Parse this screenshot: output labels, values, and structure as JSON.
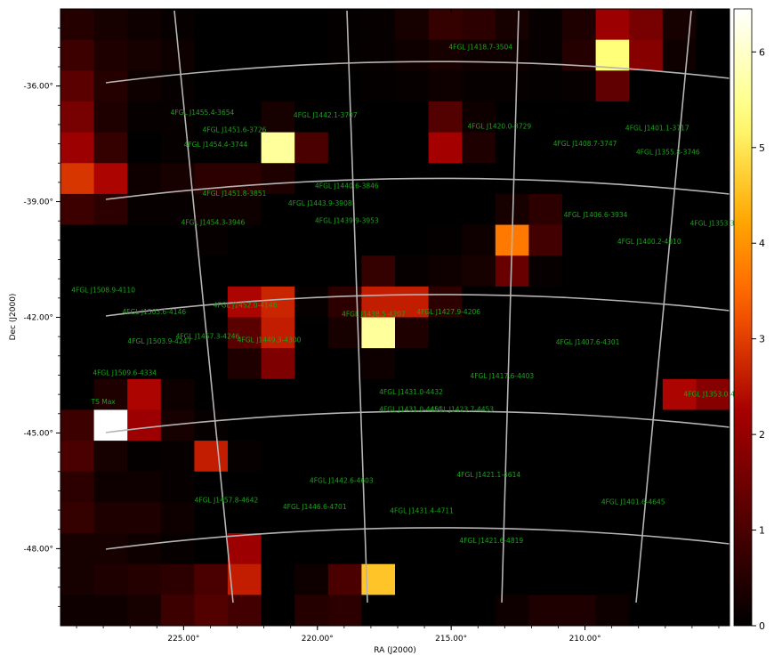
{
  "chart_data": {
    "type": "heatmap",
    "xlabel": "RA (J2000)",
    "ylabel": "Dec (J2000)",
    "x_range": [
      229.6,
      204.6
    ],
    "y_range": [
      -50.0,
      -34.0
    ],
    "x_ticks": [
      225.0,
      220.0,
      215.0,
      210.0
    ],
    "x_tick_labels": [
      "225.00°",
      "220.00°",
      "215.00°",
      "210.00°"
    ],
    "y_ticks": [
      -36.0,
      -39.0,
      -42.0,
      -45.0,
      -48.0
    ],
    "y_tick_labels": [
      "-36.00°",
      "-39.00°",
      "-42.00°",
      "-45.00°",
      "-48.00°"
    ],
    "colorbar": {
      "range": [
        0,
        6.45
      ],
      "ticks": [
        0,
        1,
        2,
        3,
        4,
        5,
        6
      ],
      "tick_labels": [
        "0",
        "1",
        "2",
        "3",
        "4",
        "5",
        "6"
      ],
      "colormap": "gist_heat"
    },
    "grid": {
      "rows": 20,
      "cols": 20,
      "values": [
        [
          0.5,
          0.3,
          0.2,
          0.1,
          0,
          0,
          0,
          0,
          0.05,
          0.1,
          0.3,
          0.7,
          0.6,
          0.3,
          0.1,
          0.4,
          2.1,
          1.6,
          0.3,
          0
        ],
        [
          0.8,
          0.4,
          0.3,
          0.2,
          0,
          0,
          0,
          0,
          0.05,
          0.1,
          0.2,
          0.3,
          0.2,
          0.2,
          0.1,
          0.5,
          5.3,
          1.8,
          0.2,
          0
        ],
        [
          1.2,
          0.5,
          0.2,
          0.1,
          0,
          0,
          0,
          0,
          0,
          0.05,
          0.1,
          0.2,
          0.1,
          0.1,
          0.05,
          0.1,
          1.3,
          0,
          0,
          0
        ],
        [
          1.6,
          0.4,
          0.1,
          0.1,
          0,
          0,
          0.3,
          0,
          0,
          0,
          0,
          1.1,
          0.2,
          0,
          0,
          0,
          0,
          0,
          0,
          0
        ],
        [
          2.1,
          0.7,
          0,
          0.1,
          0,
          0,
          5.6,
          1.0,
          0,
          0,
          0,
          2.2,
          0.4,
          0,
          0,
          0,
          0,
          0,
          0,
          0
        ],
        [
          2.9,
          2.3,
          0.2,
          0.3,
          0.6,
          0.6,
          0.4,
          0,
          0,
          0,
          0,
          0,
          0,
          0,
          0,
          0,
          0,
          0,
          0,
          0
        ],
        [
          0.8,
          0.6,
          0.1,
          0.1,
          0.2,
          0.2,
          0,
          0,
          0,
          0,
          0,
          0,
          0,
          0.3,
          0.6,
          0,
          0,
          0,
          0,
          0
        ],
        [
          0,
          0,
          0,
          0,
          0.1,
          0,
          0,
          0,
          0,
          0,
          0,
          0.05,
          0.2,
          3.7,
          0.9,
          0,
          0,
          0,
          0,
          0
        ],
        [
          0,
          0,
          0,
          0,
          0,
          0,
          0,
          0,
          0,
          0.7,
          0.1,
          0.2,
          0.3,
          1.4,
          0.1,
          0,
          0,
          0,
          0,
          0
        ],
        [
          0,
          0,
          0,
          0,
          0,
          2.3,
          2.7,
          0.1,
          0.6,
          2.6,
          2.6,
          0.6,
          0,
          0,
          0,
          0,
          0,
          0,
          0,
          0
        ],
        [
          0,
          0,
          0,
          0,
          0,
          1.2,
          2.6,
          0,
          0.3,
          5.6,
          0.4,
          0,
          0,
          0,
          0,
          0,
          0,
          0,
          0,
          0
        ],
        [
          0,
          0,
          0,
          0,
          0,
          0.4,
          1.7,
          0,
          0,
          0.2,
          0,
          0,
          0,
          0,
          0,
          0,
          0,
          0,
          0,
          0
        ],
        [
          0,
          0.4,
          2.3,
          0.2,
          0,
          0,
          0,
          0,
          0,
          0,
          0,
          0,
          0,
          0,
          0,
          0,
          0,
          0,
          2.3,
          1.8
        ],
        [
          0.8,
          6.45,
          2.1,
          0.3,
          0.1,
          0,
          0,
          0,
          0,
          0,
          0,
          0,
          0,
          0,
          0,
          0,
          0,
          0,
          0,
          0
        ],
        [
          1.0,
          0.3,
          0.05,
          0.1,
          2.6,
          0.1,
          0,
          0,
          0,
          0,
          0,
          0,
          0,
          0,
          0,
          0,
          0,
          0,
          0,
          0
        ],
        [
          0.6,
          0.2,
          0.2,
          0.1,
          0,
          0,
          0,
          0,
          0,
          0,
          0,
          0,
          0,
          0,
          0,
          0,
          0,
          0,
          0,
          0
        ],
        [
          0.7,
          0.4,
          0.4,
          0.2,
          0,
          0,
          0,
          0,
          0,
          0,
          0,
          0,
          0,
          0,
          0,
          0,
          0,
          0,
          0,
          0
        ],
        [
          0.3,
          0.3,
          0.2,
          0.1,
          0,
          2.1,
          0,
          0,
          0,
          0,
          0,
          0,
          0,
          0,
          0,
          0,
          0,
          0,
          0,
          0
        ],
        [
          0.3,
          0.4,
          0.5,
          0.6,
          1.0,
          2.6,
          0,
          0.2,
          1.0,
          4.6,
          0,
          0,
          0,
          0,
          0,
          0,
          0,
          0,
          0,
          0
        ],
        [
          0.2,
          0.2,
          0.3,
          0.8,
          1.1,
          0.9,
          0,
          0.5,
          0.6,
          0,
          0,
          0,
          0,
          0.2,
          0.4,
          0.4,
          0.2,
          0,
          0,
          0
        ]
      ]
    },
    "sources": [
      {
        "name": "4FGL J1418.7-3504",
        "ra": 213.9,
        "dec": -35.05
      },
      {
        "name": "4FGL J1455.4-3654",
        "ra": 224.3,
        "dec": -36.75
      },
      {
        "name": "4FGL J1442.1-3707",
        "ra": 219.7,
        "dec": -36.82
      },
      {
        "name": "4FGL J1451.6-3726",
        "ra": 223.1,
        "dec": -37.2
      },
      {
        "name": "4FGL J1420.0-3729",
        "ra": 213.2,
        "dec": -37.1
      },
      {
        "name": "4FGL J1401.1-3717",
        "ra": 207.3,
        "dec": -37.15
      },
      {
        "name": "4FGL J1454.4-3744",
        "ra": 223.8,
        "dec": -37.58
      },
      {
        "name": "4FGL J1408.7-3747",
        "ra": 210.0,
        "dec": -37.55
      },
      {
        "name": "4FGL J1355.8-3746",
        "ra": 206.9,
        "dec": -37.78
      },
      {
        "name": "4FGL J1440.6-3846",
        "ra": 218.9,
        "dec": -38.65
      },
      {
        "name": "4FGL J1451.8-3851",
        "ra": 223.1,
        "dec": -38.85
      },
      {
        "name": "4FGL J1443.9-3908",
        "ra": 219.9,
        "dec": -39.1
      },
      {
        "name": "4FGL J1406.6-3934",
        "ra": 209.6,
        "dec": -39.4
      },
      {
        "name": "4FGL J1454.3-3946",
        "ra": 223.9,
        "dec": -39.6
      },
      {
        "name": "4FGL J1439.9-3953",
        "ra": 218.9,
        "dec": -39.55
      },
      {
        "name": "4FGL J1353.3-",
        "ra": 205.2,
        "dec": -39.62
      },
      {
        "name": "4FGL J1400.2-4010",
        "ra": 207.6,
        "dec": -40.1
      },
      {
        "name": "4FGL J1508.9-4110",
        "ra": 228.0,
        "dec": -41.35
      },
      {
        "name": "4FGL J1452.0-4148",
        "ra": 222.7,
        "dec": -41.75
      },
      {
        "name": "4FGL J1503.6-4146",
        "ra": 226.1,
        "dec": -41.92
      },
      {
        "name": "4FGL J1438.5-4207",
        "ra": 217.9,
        "dec": -41.98
      },
      {
        "name": "4FGL J1427.9-4206",
        "ra": 215.1,
        "dec": -41.92
      },
      {
        "name": "4FGL J1457.3-4246",
        "ra": 224.1,
        "dec": -42.55
      },
      {
        "name": "4FGL J1449.3-4300",
        "ra": 221.8,
        "dec": -42.65
      },
      {
        "name": "4FGL J1503.9-4247",
        "ra": 225.9,
        "dec": -42.68
      },
      {
        "name": "4FGL J1407.6-4301",
        "ra": 209.9,
        "dec": -42.7
      },
      {
        "name": "4FGL J1509.6-4334",
        "ra": 227.2,
        "dec": -43.5
      },
      {
        "name": "4FGL J1417.6-4403",
        "ra": 213.1,
        "dec": -43.58
      },
      {
        "name": "4FGL J1431.0-4432",
        "ra": 216.5,
        "dec": -44.0
      },
      {
        "name": "4FGL J1353.0-444",
        "ra": 205.2,
        "dec": -44.05
      },
      {
        "name": "TS Max",
        "ra": 228.0,
        "dec": -44.25
      },
      {
        "name": "4FGL J1431.0-4451",
        "ra": 216.5,
        "dec": -44.45
      },
      {
        "name": "4FGL J1423.7-4453",
        "ra": 214.6,
        "dec": -44.45
      },
      {
        "name": "4FGL J1421.1-4614",
        "ra": 213.6,
        "dec": -46.15
      },
      {
        "name": "4FGL J1442.6-4603",
        "ra": 219.1,
        "dec": -46.3
      },
      {
        "name": "4FGL J1457.8-4642",
        "ra": 223.4,
        "dec": -46.8
      },
      {
        "name": "4FGL J1401.6-4645",
        "ra": 208.2,
        "dec": -46.85
      },
      {
        "name": "4FGL J1446.6-4701",
        "ra": 220.1,
        "dec": -46.98
      },
      {
        "name": "4FGL J1431.4-4711",
        "ra": 216.1,
        "dec": -47.08
      },
      {
        "name": "4FGL J1421.6-4819",
        "ra": 213.5,
        "dec": -47.85
      }
    ]
  }
}
